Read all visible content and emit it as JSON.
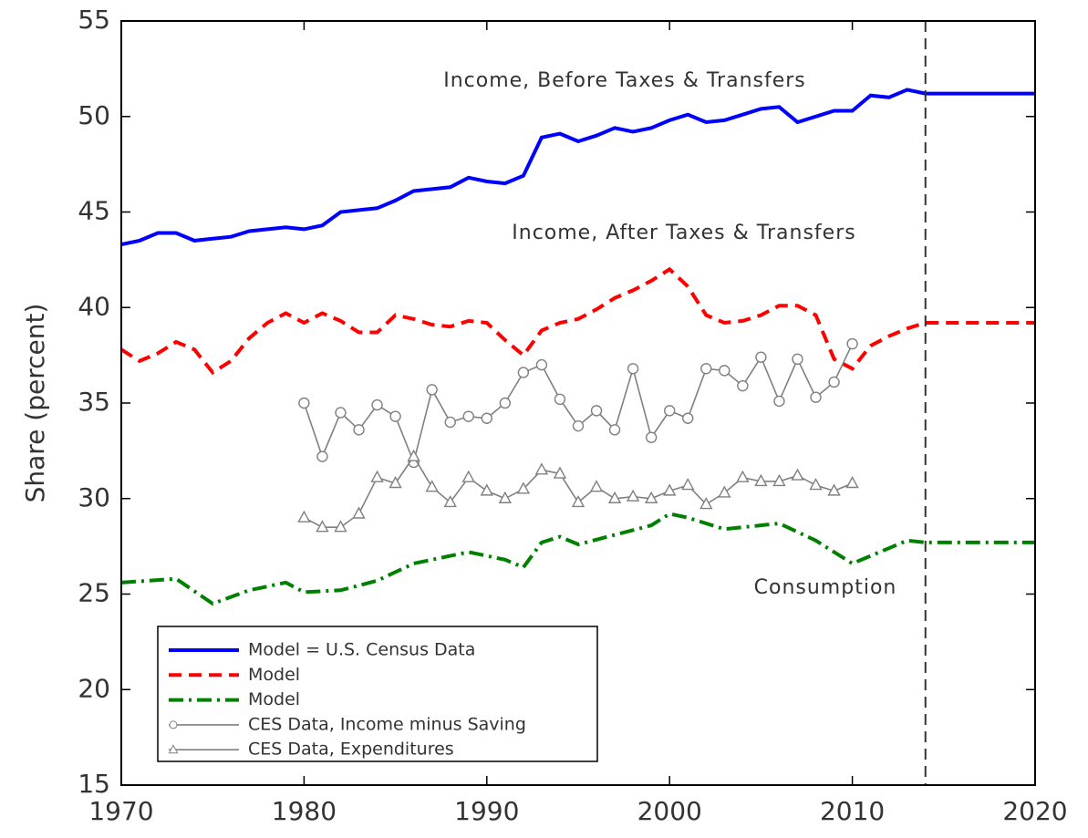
{
  "chart_data": {
    "type": "line",
    "ylabel": "Share (percent)",
    "xlim": [
      1970,
      2020
    ],
    "xticks": [
      1970,
      1980,
      1990,
      2000,
      2010,
      2020
    ],
    "ylim": [
      15,
      55
    ],
    "yticks": [
      15,
      20,
      25,
      30,
      35,
      40,
      45,
      50,
      55
    ],
    "grid": false,
    "legend": "lower left",
    "vline": 2014,
    "annotations": [
      "Income, Before Taxes & Transfers",
      "Income, After Taxes & Transfers",
      "Consumption"
    ],
    "series": [
      {
        "name": "Model = U.S. Census Data",
        "color": "#0000ff",
        "style": "solid",
        "marker": "none",
        "x": [
          1970,
          1971,
          1972,
          1973,
          1974,
          1975,
          1976,
          1977,
          1978,
          1979,
          1980,
          1981,
          1982,
          1983,
          1984,
          1985,
          1986,
          1987,
          1988,
          1989,
          1990,
          1991,
          1992,
          1993,
          1994,
          1995,
          1996,
          1997,
          1998,
          1999,
          2000,
          2001,
          2002,
          2003,
          2004,
          2005,
          2006,
          2007,
          2008,
          2009,
          2010,
          2011,
          2012,
          2013,
          2014,
          2020
        ],
        "values": [
          43.3,
          43.5,
          43.9,
          43.9,
          43.5,
          43.6,
          43.7,
          44.0,
          44.1,
          44.2,
          44.1,
          44.3,
          45.0,
          45.1,
          45.2,
          45.6,
          46.1,
          46.2,
          46.3,
          46.8,
          46.6,
          46.5,
          46.9,
          48.9,
          49.1,
          48.7,
          49.0,
          49.4,
          49.2,
          49.4,
          49.8,
          50.1,
          49.7,
          49.8,
          50.1,
          50.4,
          50.5,
          49.7,
          50.0,
          50.3,
          50.3,
          51.1,
          51.0,
          51.4,
          51.2,
          51.2
        ]
      },
      {
        "name": "Model",
        "color": "#ff0000",
        "style": "dashed",
        "marker": "none",
        "x": [
          1970,
          1971,
          1972,
          1973,
          1974,
          1975,
          1976,
          1977,
          1978,
          1979,
          1980,
          1981,
          1982,
          1983,
          1984,
          1985,
          1986,
          1987,
          1988,
          1989,
          1990,
          1991,
          1992,
          1993,
          1994,
          1995,
          1996,
          1997,
          1998,
          1999,
          2000,
          2001,
          2002,
          2003,
          2004,
          2005,
          2006,
          2007,
          2008,
          2009,
          2010,
          2011,
          2012,
          2013,
          2014,
          2020
        ],
        "values": [
          37.8,
          37.2,
          37.6,
          38.2,
          37.8,
          36.6,
          37.2,
          38.4,
          39.2,
          39.7,
          39.2,
          39.7,
          39.3,
          38.7,
          38.7,
          39.6,
          39.4,
          39.1,
          39.0,
          39.3,
          39.2,
          38.3,
          37.5,
          38.8,
          39.2,
          39.4,
          39.9,
          40.5,
          40.9,
          41.4,
          42.0,
          41.1,
          39.6,
          39.2,
          39.3,
          39.6,
          40.1,
          40.1,
          39.6,
          37.3,
          36.8,
          38.0,
          38.5,
          38.9,
          39.2,
          39.2
        ]
      },
      {
        "name": "Model",
        "color": "#008000",
        "style": "dashdot",
        "marker": "none",
        "x": [
          1970,
          1973,
          1975,
          1977,
          1979,
          1980,
          1982,
          1984,
          1986,
          1988,
          1989,
          1991,
          1992,
          1993,
          1994,
          1995,
          1997,
          1999,
          2000,
          2001,
          2003,
          2005,
          2006,
          2008,
          2010,
          2012,
          2013,
          2014,
          2020
        ],
        "values": [
          25.6,
          25.8,
          24.5,
          25.2,
          25.6,
          25.1,
          25.2,
          25.7,
          26.6,
          27.0,
          27.2,
          26.8,
          26.4,
          27.7,
          28.0,
          27.6,
          28.1,
          28.6,
          29.2,
          29.0,
          28.4,
          28.6,
          28.7,
          27.8,
          26.6,
          27.4,
          27.8,
          27.7,
          27.7
        ]
      },
      {
        "name": "CES Data, Income minus Saving",
        "color": "#808080",
        "style": "solid",
        "marker": "circle",
        "x": [
          1980,
          1981,
          1982,
          1983,
          1984,
          1985,
          1986,
          1987,
          1988,
          1989,
          1990,
          1991,
          1992,
          1993,
          1994,
          1995,
          1996,
          1997,
          1998,
          1999,
          2000,
          2001,
          2002,
          2003,
          2004,
          2005,
          2006,
          2007,
          2008,
          2009,
          2010
        ],
        "values": [
          35.0,
          32.2,
          34.5,
          33.6,
          34.9,
          34.3,
          31.9,
          35.7,
          34.0,
          34.3,
          34.2,
          35.0,
          36.6,
          37.0,
          35.2,
          33.8,
          34.6,
          33.6,
          36.8,
          33.2,
          34.6,
          34.2,
          36.8,
          36.7,
          35.9,
          37.4,
          35.1,
          37.3,
          35.3,
          36.1,
          38.1
        ]
      },
      {
        "name": "CES Data, Expenditures",
        "color": "#808080",
        "style": "solid",
        "marker": "triangle",
        "x": [
          1980,
          1981,
          1982,
          1983,
          1984,
          1985,
          1986,
          1987,
          1988,
          1989,
          1990,
          1991,
          1992,
          1993,
          1994,
          1995,
          1996,
          1997,
          1998,
          1999,
          2000,
          2001,
          2002,
          2003,
          2004,
          2005,
          2006,
          2007,
          2008,
          2009,
          2010
        ],
        "values": [
          29.0,
          28.5,
          28.5,
          29.2,
          31.1,
          30.8,
          32.2,
          30.6,
          29.8,
          31.1,
          30.4,
          30.0,
          30.5,
          31.5,
          31.3,
          29.8,
          30.6,
          30.0,
          30.1,
          30.0,
          30.4,
          30.7,
          29.7,
          30.3,
          31.1,
          30.9,
          30.9,
          31.2,
          30.7,
          30.4,
          30.8
        ]
      }
    ]
  }
}
